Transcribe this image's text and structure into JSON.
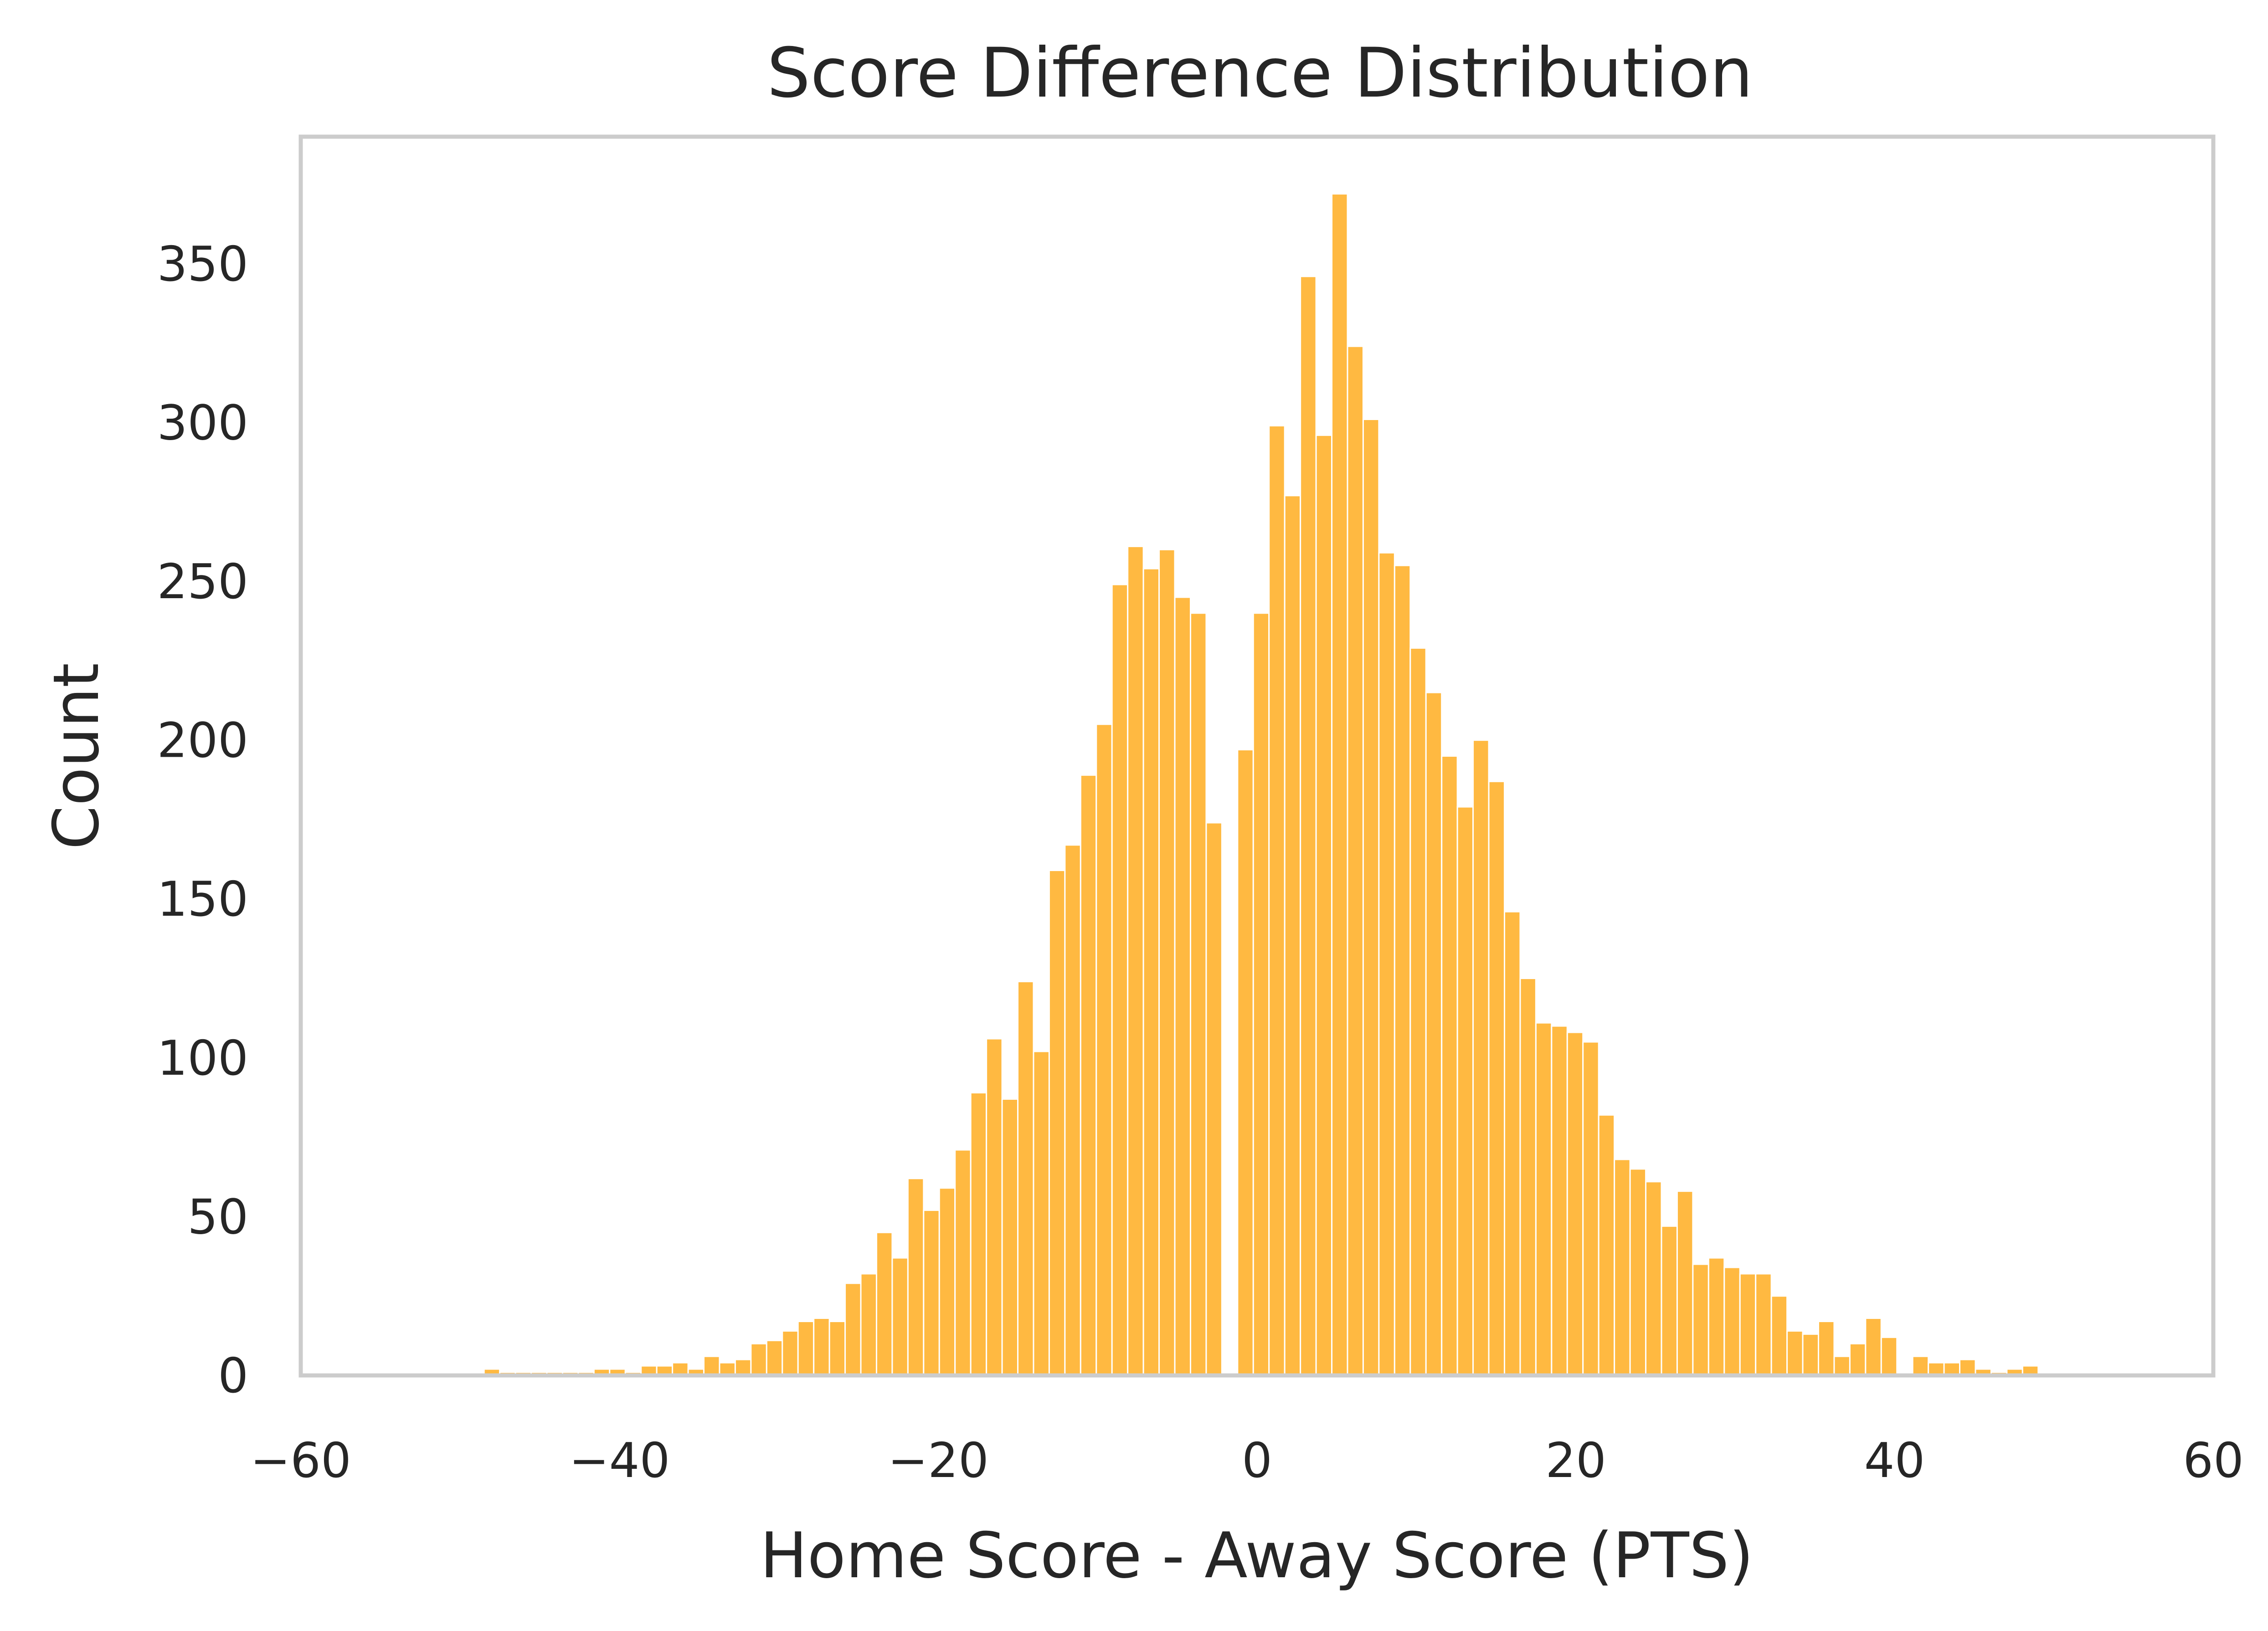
{
  "chart_data": {
    "type": "bar",
    "title": "Score Difference Distribution",
    "xlabel": "Home Score - Away Score (PTS)",
    "ylabel": "Count",
    "xlim": [
      -60,
      60
    ],
    "ylim": [
      0,
      390
    ],
    "grid": false,
    "legend": "none",
    "colors": {
      "bar": "#ffb941",
      "bar_edge": "#ffffff",
      "frame": "#cccccc",
      "text": "#262626"
    },
    "x_ticks": [
      {
        "value": -60,
        "label": "−60"
      },
      {
        "value": -40,
        "label": "−40"
      },
      {
        "value": -20,
        "label": "−20"
      },
      {
        "value": 0,
        "label": "0"
      },
      {
        "value": 20,
        "label": "20"
      },
      {
        "value": 40,
        "label": "40"
      },
      {
        "value": 60,
        "label": "60"
      }
    ],
    "y_ticks": [
      {
        "value": 0,
        "label": "0"
      },
      {
        "value": 50,
        "label": "50"
      },
      {
        "value": 100,
        "label": "100"
      },
      {
        "value": 150,
        "label": "150"
      },
      {
        "value": 200,
        "label": "200"
      },
      {
        "value": 250,
        "label": "250"
      },
      {
        "value": 300,
        "label": "300"
      },
      {
        "value": 350,
        "label": "350"
      }
    ],
    "bins": {
      "start": -48.5,
      "width": 0.985,
      "counts": [
        2,
        1,
        1,
        1,
        1,
        1,
        1,
        2,
        2,
        1,
        3,
        3,
        4,
        2,
        6,
        4,
        5,
        10,
        11,
        14,
        17,
        18,
        17,
        29,
        32,
        45,
        37,
        62,
        52,
        59,
        71,
        89,
        106,
        87,
        124,
        102,
        159,
        167,
        189,
        205,
        249,
        261,
        254,
        260,
        245,
        240,
        174,
        0,
        197,
        240,
        299,
        277,
        346,
        296,
        372,
        324,
        301,
        259,
        255,
        229,
        215,
        195,
        179,
        200,
        187,
        146,
        125,
        111,
        110,
        108,
        105,
        82,
        68,
        65,
        61,
        47,
        58,
        35,
        37,
        34,
        32,
        32,
        25,
        14,
        13,
        17,
        6,
        10,
        18,
        12,
        0,
        6,
        4,
        4,
        5,
        2,
        1,
        2,
        3
      ]
    }
  }
}
